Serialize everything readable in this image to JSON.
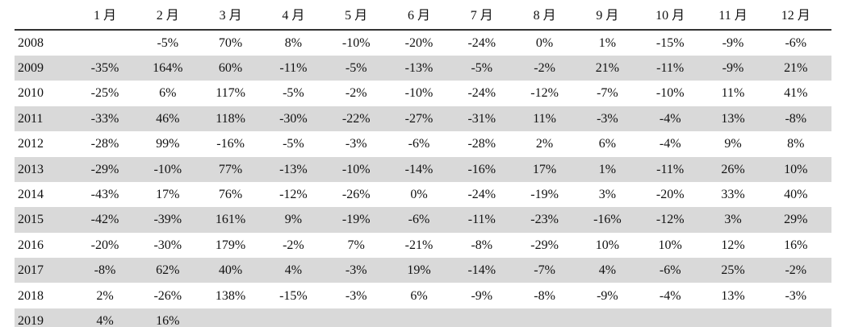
{
  "table": {
    "header": [
      "1 月",
      "2 月",
      "3 月",
      "4 月",
      "5 月",
      "6 月",
      "7 月",
      "8 月",
      "9 月",
      "10 月",
      "11 月",
      "12 月"
    ],
    "rows": [
      [
        "2008",
        null,
        "-5%",
        "70%",
        "8%",
        "-10%",
        "-20%",
        "-24%",
        "0%",
        "1%",
        "-15%",
        "-9%",
        "-6%"
      ],
      [
        "2009",
        "-35%",
        "164%",
        "60%",
        "-11%",
        "-5%",
        "-13%",
        "-5%",
        "-2%",
        "21%",
        "-11%",
        "-9%",
        "21%"
      ],
      [
        "2010",
        "-25%",
        "6%",
        "117%",
        "-5%",
        "-2%",
        "-10%",
        "-24%",
        "-12%",
        "-7%",
        "-10%",
        "11%",
        "41%"
      ],
      [
        "2011",
        "-33%",
        "46%",
        "118%",
        "-30%",
        "-22%",
        "-27%",
        "-31%",
        "11%",
        "-3%",
        "-4%",
        "13%",
        "-8%"
      ],
      [
        "2012",
        "-28%",
        "99%",
        "-16%",
        "-5%",
        "-3%",
        "-6%",
        "-28%",
        "2%",
        "6%",
        "-4%",
        "9%",
        "8%"
      ],
      [
        "2013",
        "-29%",
        "-10%",
        "77%",
        "-13%",
        "-10%",
        "-14%",
        "-16%",
        "17%",
        "1%",
        "-11%",
        "26%",
        "10%"
      ],
      [
        "2014",
        "-43%",
        "17%",
        "76%",
        "-12%",
        "-26%",
        "0%",
        "-24%",
        "-19%",
        "3%",
        "-20%",
        "33%",
        "40%"
      ],
      [
        "2015",
        "-42%",
        "-39%",
        "161%",
        "9%",
        "-19%",
        "-6%",
        "-11%",
        "-23%",
        "-16%",
        "-12%",
        "3%",
        "29%"
      ],
      [
        "2016",
        "-20%",
        "-30%",
        "179%",
        "-2%",
        "7%",
        "-21%",
        "-8%",
        "-29%",
        "10%",
        "10%",
        "12%",
        "16%"
      ],
      [
        "2017",
        "-8%",
        "62%",
        "40%",
        "4%",
        "-3%",
        "19%",
        "-14%",
        "-7%",
        "4%",
        "-6%",
        "25%",
        "-2%"
      ],
      [
        "2018",
        "2%",
        "-26%",
        "138%",
        "-15%",
        "-3%",
        "6%",
        "-9%",
        "-8%",
        "-9%",
        "-4%",
        "13%",
        "-3%"
      ],
      [
        "2019",
        "4%",
        "16%"
      ]
    ]
  }
}
